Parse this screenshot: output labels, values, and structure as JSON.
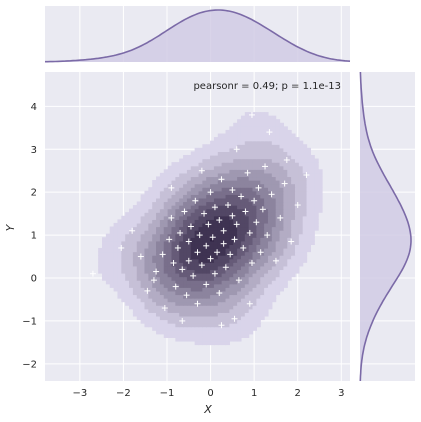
{
  "chart_data": {
    "type": "scatter",
    "subtype": "jointplot-kde",
    "xlabel": "X",
    "ylabel": "Y",
    "xlim": [
      -3.8,
      3.2
    ],
    "ylim": [
      -2.4,
      4.8
    ],
    "xticks": [
      -3,
      -2,
      -1,
      0,
      1,
      2,
      3
    ],
    "yticks": [
      -2,
      -1,
      0,
      1,
      2,
      3,
      4
    ],
    "annotation": "pearsonr = 0.49; p = 1.1e-13",
    "grid": true,
    "marker": "+",
    "kde_levels": 10,
    "colors": {
      "background": "#eaeaf2",
      "grid": "#ffffff",
      "kde_dark": "#2c1f3f",
      "kde_light": "#d9d4ea",
      "marginal_line": "#7b6aa7",
      "marginal_fill": "#cfc9e3",
      "marker": "#ffffff"
    },
    "points": [
      [
        -1.25,
        0.15
      ],
      [
        -1.3,
        -0.05
      ],
      [
        -1.1,
        0.55
      ],
      [
        -0.95,
        0.9
      ],
      [
        -0.9,
        1.4
      ],
      [
        -0.85,
        0.35
      ],
      [
        -0.8,
        -0.2
      ],
      [
        -0.75,
        0.7
      ],
      [
        -0.7,
        1.05
      ],
      [
        -0.65,
        0.2
      ],
      [
        -0.6,
        1.55
      ],
      [
        -0.55,
        -0.4
      ],
      [
        -0.5,
        0.85
      ],
      [
        -0.5,
        0.4
      ],
      [
        -0.45,
        1.2
      ],
      [
        -0.4,
        0.05
      ],
      [
        -0.35,
        1.8
      ],
      [
        -0.3,
        0.6
      ],
      [
        -0.3,
        -0.6
      ],
      [
        -0.25,
        1.0
      ],
      [
        -0.2,
        0.3
      ],
      [
        -0.15,
        1.5
      ],
      [
        -0.1,
        0.75
      ],
      [
        -0.1,
        -0.15
      ],
      [
        -0.05,
        1.25
      ],
      [
        0.0,
        0.45
      ],
      [
        0.0,
        2.0
      ],
      [
        0.05,
        0.95
      ],
      [
        0.1,
        0.1
      ],
      [
        0.1,
        1.65
      ],
      [
        0.15,
        0.6
      ],
      [
        0.2,
        1.35
      ],
      [
        0.2,
        -0.35
      ],
      [
        0.25,
        2.3
      ],
      [
        0.3,
        0.8
      ],
      [
        0.3,
        1.1
      ],
      [
        0.35,
        0.25
      ],
      [
        0.4,
        1.7
      ],
      [
        0.45,
        0.55
      ],
      [
        0.5,
        1.45
      ],
      [
        0.5,
        2.05
      ],
      [
        0.55,
        0.9
      ],
      [
        0.6,
        1.25
      ],
      [
        0.65,
        -0.05
      ],
      [
        0.7,
        1.9
      ],
      [
        0.75,
        0.7
      ],
      [
        0.8,
        1.55
      ],
      [
        0.85,
        2.45
      ],
      [
        0.9,
        1.05
      ],
      [
        0.95,
        0.35
      ],
      [
        1.0,
        1.8
      ],
      [
        1.05,
        1.3
      ],
      [
        1.1,
        2.1
      ],
      [
        1.15,
        0.6
      ],
      [
        1.2,
        1.6
      ],
      [
        1.25,
        2.6
      ],
      [
        1.3,
        1.0
      ],
      [
        1.4,
        1.95
      ],
      [
        1.5,
        0.4
      ],
      [
        1.6,
        1.4
      ],
      [
        1.7,
        2.2
      ],
      [
        1.85,
        0.85
      ],
      [
        2.0,
        1.7
      ],
      [
        2.2,
        2.4
      ],
      [
        -1.6,
        0.5
      ],
      [
        -1.8,
        1.1
      ],
      [
        -2.05,
        0.7
      ],
      [
        -1.45,
        -0.3
      ],
      [
        -1.05,
        -0.7
      ],
      [
        -0.65,
        -1.0
      ],
      [
        -0.2,
        2.5
      ],
      [
        0.6,
        3.0
      ],
      [
        0.9,
        -0.6
      ],
      [
        1.35,
        3.4
      ],
      [
        0.55,
        -0.95
      ],
      [
        -2.7,
        0.1
      ],
      [
        0.95,
        3.8
      ],
      [
        1.75,
        2.75
      ],
      [
        -0.9,
        2.1
      ],
      [
        0.25,
        -1.1
      ]
    ]
  }
}
